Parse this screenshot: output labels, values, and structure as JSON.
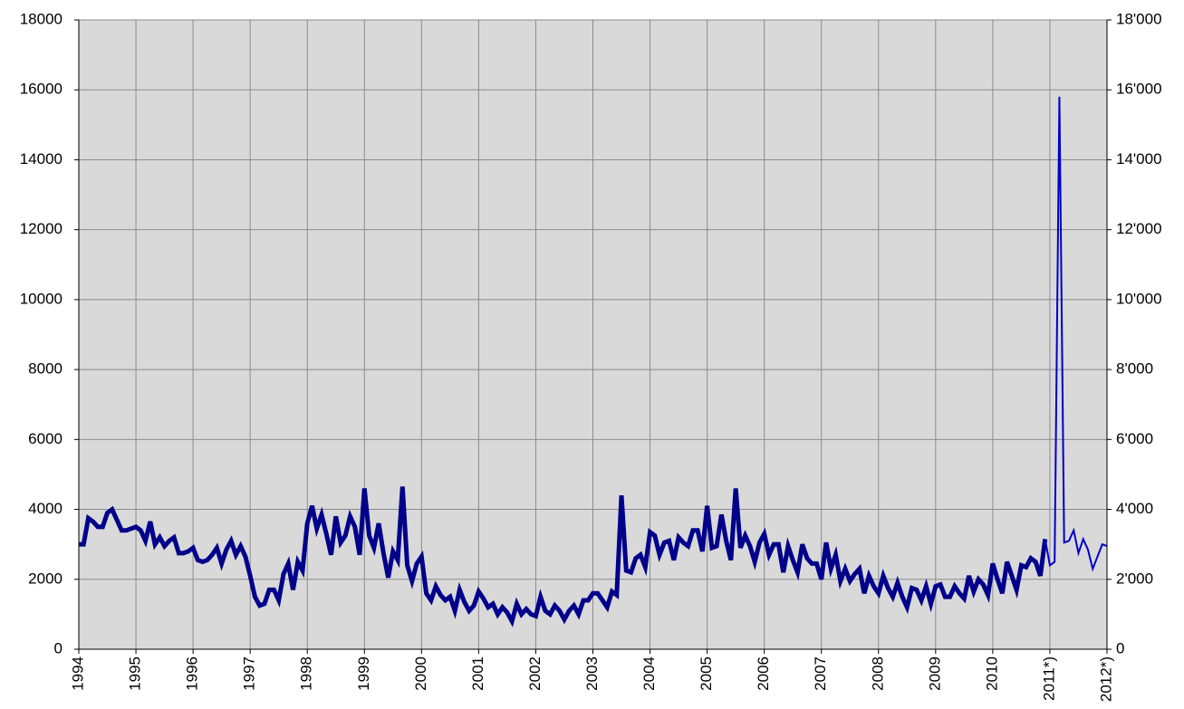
{
  "chart_data": {
    "type": "line",
    "categories": [
      "1994",
      null,
      null,
      null,
      null,
      null,
      null,
      null,
      null,
      null,
      null,
      null,
      "1995",
      null,
      null,
      null,
      null,
      null,
      null,
      null,
      null,
      null,
      null,
      null,
      "1996",
      null,
      null,
      null,
      null,
      null,
      null,
      null,
      null,
      null,
      null,
      null,
      "1997",
      null,
      null,
      null,
      null,
      null,
      null,
      null,
      null,
      null,
      null,
      null,
      "1998",
      null,
      null,
      null,
      null,
      null,
      null,
      null,
      null,
      null,
      null,
      null,
      "1999",
      null,
      null,
      null,
      null,
      null,
      null,
      null,
      null,
      null,
      null,
      null,
      "2000",
      null,
      null,
      null,
      null,
      null,
      null,
      null,
      null,
      null,
      null,
      null,
      "2001",
      null,
      null,
      null,
      null,
      null,
      null,
      null,
      null,
      null,
      null,
      null,
      "2002",
      null,
      null,
      null,
      null,
      null,
      null,
      null,
      null,
      null,
      null,
      null,
      "2003",
      null,
      null,
      null,
      null,
      null,
      null,
      null,
      null,
      null,
      null,
      null,
      "2004",
      null,
      null,
      null,
      null,
      null,
      null,
      null,
      null,
      null,
      null,
      null,
      "2005",
      null,
      null,
      null,
      null,
      null,
      null,
      null,
      null,
      null,
      null,
      null,
      "2006",
      null,
      null,
      null,
      null,
      null,
      null,
      null,
      null,
      null,
      null,
      null,
      "2007",
      null,
      null,
      null,
      null,
      null,
      null,
      null,
      null,
      null,
      null,
      null,
      "2008",
      null,
      null,
      null,
      null,
      null,
      null,
      null,
      null,
      null,
      null,
      null,
      "2009",
      null,
      null,
      null,
      null,
      null,
      null,
      null,
      null,
      null,
      null,
      null,
      "2010",
      null,
      null,
      null,
      null,
      null,
      null,
      null,
      null,
      null,
      null,
      null,
      "2011*)",
      null,
      null,
      null,
      null,
      null,
      null,
      null,
      null,
      null,
      null,
      null,
      "2012*)"
    ],
    "series": [
      {
        "color": "#00008b",
        "width": 5,
        "values": [
          3000,
          3000,
          3750,
          3650,
          3500,
          3500,
          3900,
          4000,
          3700,
          3400,
          3400,
          3450,
          3500,
          3400,
          3100,
          3650,
          3000,
          3200,
          2950,
          3100,
          3200,
          2750,
          2750,
          2800,
          2900,
          2550,
          2500,
          2550,
          2700,
          2900,
          2450,
          2850,
          3100,
          2700,
          2950,
          2650,
          2100,
          1500,
          1250,
          1300,
          1700,
          1700,
          1400,
          2150,
          2450,
          1700,
          2500,
          2250,
          3600,
          4100,
          3450,
          3850,
          3300,
          2700,
          3800,
          3050,
          3250,
          3800,
          3500,
          2700,
          4600,
          3250,
          2900,
          3600,
          2750,
          2050,
          2800,
          2550,
          4650,
          2400,
          1950,
          2450,
          2650,
          1600,
          1400,
          1800,
          1550,
          1400,
          1500,
          1100,
          1700,
          1350,
          1100,
          1250,
          1650,
          1450,
          1200,
          1300,
          1000,
          1200,
          1050,
          800,
          1300,
          1000,
          1150,
          1000,
          950,
          1500,
          1100,
          1000,
          1250,
          1100,
          850,
          1100,
          1250,
          1000,
          1400,
          1400,
          1600,
          1600,
          1400,
          1200,
          1650,
          1550,
          4400,
          2250,
          2200,
          2600,
          2700,
          2350,
          3350,
          3250,
          2700,
          3050,
          3100,
          2550,
          3200,
          3050,
          2950,
          3400,
          3400,
          2800,
          4100,
          2900,
          2950,
          3850,
          3100,
          2550,
          4600,
          2900,
          3250,
          2950,
          2500,
          3050,
          3300,
          2700,
          3000,
          3000,
          2200,
          2950,
          2550,
          2200,
          3000,
          2600,
          2450,
          2450,
          2000,
          3050,
          2300,
          2700,
          1950,
          2300,
          1950,
          2150,
          2300,
          1600,
          2100,
          1800,
          1600,
          2100,
          1750,
          1500,
          1900,
          1500,
          1200,
          1750,
          1700,
          1400,
          1800,
          1300,
          1800,
          1850,
          1500,
          1500,
          1800,
          1600,
          1450,
          2100,
          1650,
          2000,
          1850,
          1550,
          2450,
          2000,
          1600,
          2500,
          2100,
          1700,
          2400,
          2350,
          2600,
          2500,
          2100,
          3150,
          null,
          null,
          null,
          null,
          null,
          null,
          null,
          null,
          null,
          null,
          null,
          null,
          null
        ]
      },
      {
        "color": "#0000cc",
        "width": 2,
        "values": [
          null,
          null,
          null,
          null,
          null,
          null,
          null,
          null,
          null,
          null,
          null,
          null,
          null,
          null,
          null,
          null,
          null,
          null,
          null,
          null,
          null,
          null,
          null,
          null,
          null,
          null,
          null,
          null,
          null,
          null,
          null,
          null,
          null,
          null,
          null,
          null,
          null,
          null,
          null,
          null,
          null,
          null,
          null,
          null,
          null,
          null,
          null,
          null,
          null,
          null,
          null,
          null,
          null,
          null,
          null,
          null,
          null,
          null,
          null,
          null,
          null,
          null,
          null,
          null,
          null,
          null,
          null,
          null,
          null,
          null,
          null,
          null,
          null,
          null,
          null,
          null,
          null,
          null,
          null,
          null,
          null,
          null,
          null,
          null,
          null,
          null,
          null,
          null,
          null,
          null,
          null,
          null,
          null,
          null,
          null,
          null,
          null,
          null,
          null,
          null,
          null,
          null,
          null,
          null,
          null,
          null,
          null,
          null,
          null,
          null,
          null,
          null,
          null,
          null,
          null,
          null,
          null,
          null,
          null,
          null,
          null,
          null,
          null,
          null,
          null,
          null,
          null,
          null,
          null,
          null,
          null,
          null,
          null,
          null,
          null,
          null,
          null,
          null,
          null,
          null,
          null,
          null,
          null,
          null,
          null,
          null,
          null,
          null,
          null,
          null,
          null,
          null,
          null,
          null,
          null,
          null,
          null,
          null,
          null,
          null,
          null,
          null,
          null,
          null,
          null,
          null,
          null,
          null,
          null,
          null,
          null,
          null,
          null,
          null,
          null,
          null,
          null,
          null,
          null,
          null,
          null,
          null,
          null,
          null,
          null,
          null,
          null,
          null,
          null,
          null,
          null,
          null,
          null,
          null,
          null,
          null,
          null,
          null,
          null,
          null,
          null,
          null,
          null,
          3150,
          2400,
          2500,
          15800,
          3050,
          3100,
          3400,
          2750,
          3150,
          2850,
          2300,
          2650,
          3000,
          2950
        ]
      }
    ],
    "ylim": [
      0,
      18000
    ],
    "yticks": [
      0,
      2000,
      4000,
      6000,
      8000,
      10000,
      12000,
      14000,
      16000,
      18000
    ],
    "y2lim": [
      0,
      18000
    ],
    "y2ticks": [
      0,
      {
        "value": 2000,
        "label": "2'000"
      },
      {
        "value": 4000,
        "label": "4'000"
      },
      {
        "value": 6000,
        "label": "6'000"
      },
      {
        "value": 8000,
        "label": "8'000"
      },
      {
        "value": 10000,
        "label": "10'000"
      },
      {
        "value": 12000,
        "label": "12'000"
      },
      {
        "value": 14000,
        "label": "14'000"
      },
      {
        "value": 16000,
        "label": "16'000"
      },
      {
        "value": 18000,
        "label": "18'000"
      }
    ],
    "grid": true,
    "plot_background": "#d9d9d9"
  }
}
